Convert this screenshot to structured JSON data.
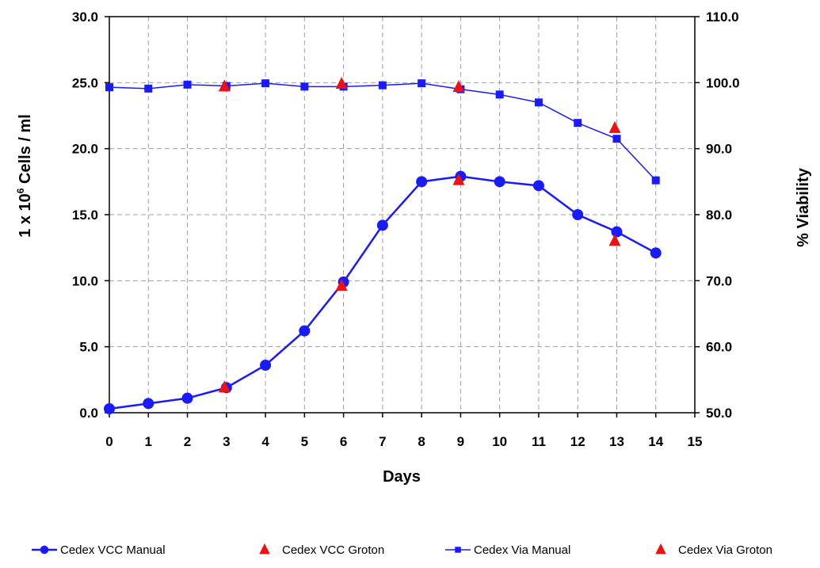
{
  "chart_data": {
    "type": "line",
    "xlabel": "Days",
    "ylabel_left_parts": [
      "1 x 10",
      "6",
      " Cells / ml"
    ],
    "ylabel_right": "% Viability",
    "xlim": [
      0,
      15
    ],
    "ylim_left": [
      0,
      30
    ],
    "ylim_right": [
      50,
      110
    ],
    "x_ticks": [
      "0",
      "1",
      "2",
      "3",
      "4",
      "5",
      "6",
      "7",
      "8",
      "9",
      "10",
      "11",
      "12",
      "13",
      "14",
      "15"
    ],
    "y_left_ticks": [
      "0.0",
      "5.0",
      "10.0",
      "15.0",
      "20.0",
      "25.0",
      "30.0"
    ],
    "y_right_ticks": [
      "50.0",
      "60.0",
      "70.0",
      "80.0",
      "90.0",
      "100.0",
      "110.0"
    ],
    "grid": true,
    "legend_position": "bottom",
    "series": [
      {
        "name": "Cedex VCC Manual",
        "axis": "left",
        "marker": "circle",
        "line": true,
        "color": "#1a1aff",
        "x": [
          0,
          1,
          2,
          3,
          4,
          5,
          6,
          7,
          8,
          9,
          10,
          11,
          12,
          13,
          14
        ],
        "y": [
          0.3,
          0.7,
          1.1,
          1.9,
          3.6,
          6.2,
          9.9,
          14.2,
          17.5,
          17.9,
          17.5,
          17.2,
          15.0,
          13.7,
          12.1
        ]
      },
      {
        "name": "Cedex VCC Groton",
        "axis": "left",
        "marker": "triangle",
        "line": false,
        "color": "#ee1111",
        "x": [
          2.95,
          5.95,
          8.95,
          12.95
        ],
        "y": [
          1.9,
          9.6,
          17.6,
          13.0
        ]
      },
      {
        "name": "Cedex Via Manual",
        "axis": "right",
        "marker": "square",
        "line": true,
        "color": "#1a1aff",
        "x": [
          0,
          1,
          2,
          3,
          4,
          5,
          6,
          7,
          8,
          9,
          10,
          11,
          12,
          13,
          14
        ],
        "y": [
          99.3,
          99.1,
          99.7,
          99.5,
          99.9,
          99.4,
          99.4,
          99.6,
          99.9,
          99.0,
          98.2,
          97.0,
          93.9,
          91.5,
          85.2
        ]
      },
      {
        "name": "Cedex Via  Groton",
        "axis": "right",
        "marker": "triangle",
        "line": false,
        "color": "#ee1111",
        "x": [
          2.95,
          5.95,
          8.95,
          12.95
        ],
        "y": [
          99.4,
          99.8,
          99.3,
          93.1
        ]
      }
    ]
  }
}
